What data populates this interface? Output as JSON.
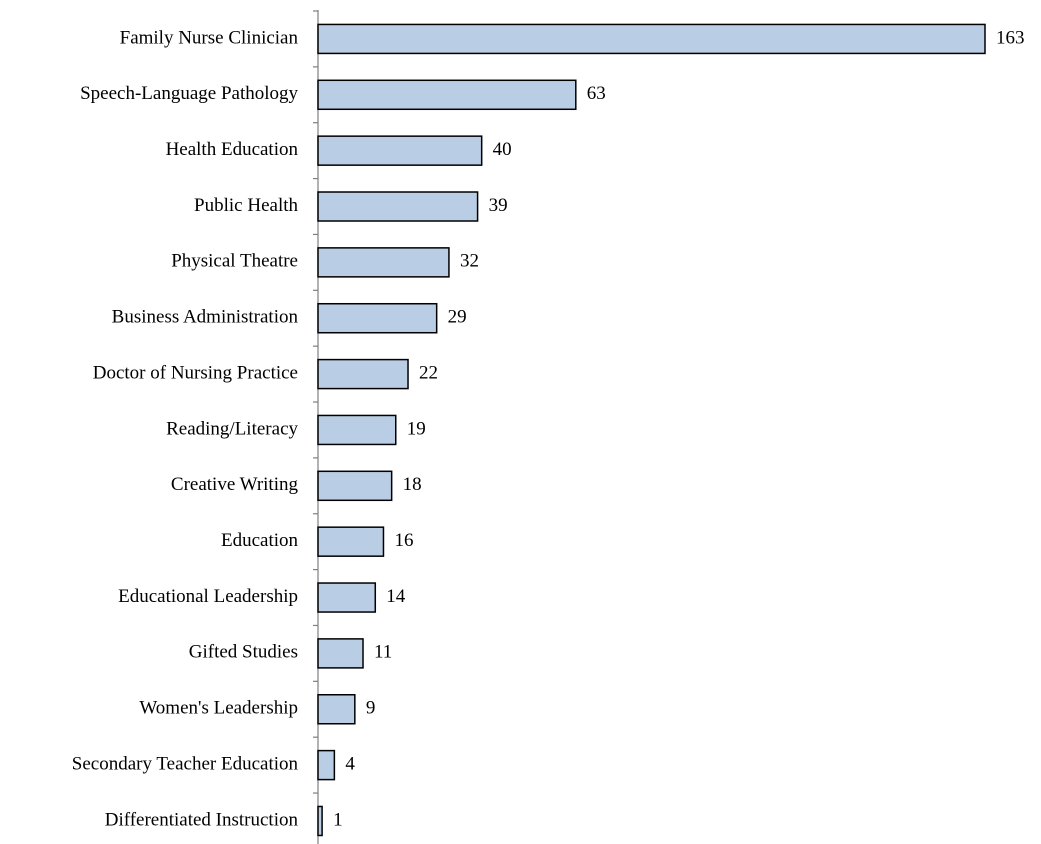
{
  "chart_data": {
    "type": "bar",
    "orientation": "horizontal",
    "categories": [
      "Family Nurse Clinician",
      "Speech-Language Pathology",
      "Health Education",
      "Public Health",
      "Physical Theatre",
      "Business Administration",
      "Doctor of Nursing Practice",
      "Reading/Literacy",
      "Creative Writing",
      "Education",
      "Educational Leadership",
      "Gifted Studies",
      "Women's Leadership",
      "Secondary Teacher Education",
      "Differentiated Instruction"
    ],
    "values": [
      163,
      63,
      40,
      39,
      32,
      29,
      22,
      19,
      18,
      16,
      14,
      11,
      9,
      4,
      1
    ],
    "color": "#b9cde5"
  }
}
